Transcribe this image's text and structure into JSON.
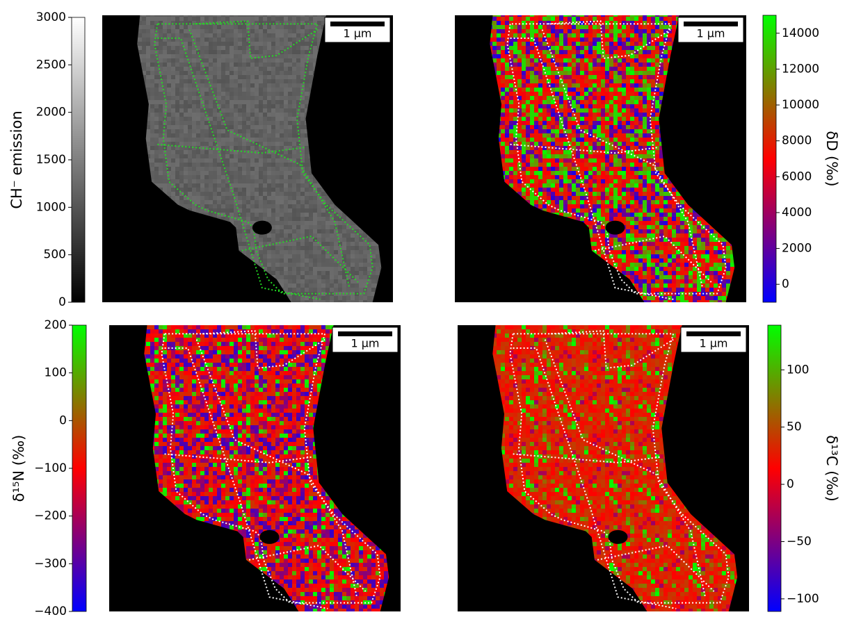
{
  "chart_data": [
    {
      "type": "heatmap",
      "colorbar_label": "CH⁻ emission",
      "colorbar_side": "left",
      "colors": [
        "#000000",
        "#ffffff"
      ],
      "clim": [
        0,
        3000
      ],
      "cticks": [
        0,
        500,
        1000,
        1500,
        2000,
        2500,
        3000
      ],
      "scale_bar": "1 μm"
    },
    {
      "type": "heatmap",
      "colorbar_label": "δD (‰)",
      "colorbar_side": "right",
      "colors": [
        "#0000ff",
        "#ff0000",
        "#00ff00"
      ],
      "clim": [
        -1000,
        15000
      ],
      "cticks": [
        0,
        2000,
        4000,
        6000,
        8000,
        10000,
        12000,
        14000
      ],
      "scale_bar": "1 μm"
    },
    {
      "type": "heatmap",
      "colorbar_label": "δ¹⁵N (‰)",
      "colorbar_side": "left",
      "colors": [
        "#0000ff",
        "#ff0000",
        "#00ff00"
      ],
      "clim": [
        -400,
        200
      ],
      "cticks": [
        {
          "value": -400,
          "label": "−400"
        },
        {
          "value": -300,
          "label": "−300"
        },
        {
          "value": -200,
          "label": "−200"
        },
        {
          "value": -100,
          "label": "−100"
        },
        0,
        100,
        200
      ],
      "scale_bar": "1 μm"
    },
    {
      "type": "heatmap",
      "colorbar_label": "δ¹³C (‰)",
      "colorbar_side": "right",
      "colors": [
        "#0000ff",
        "#ff0000",
        "#00ff00"
      ],
      "clim": [
        -111,
        139
      ],
      "cticks": [
        {
          "value": -100,
          "label": "−100"
        },
        {
          "value": -50,
          "label": "−50"
        },
        0,
        50,
        100
      ],
      "scale_bar": "1 μm"
    }
  ]
}
